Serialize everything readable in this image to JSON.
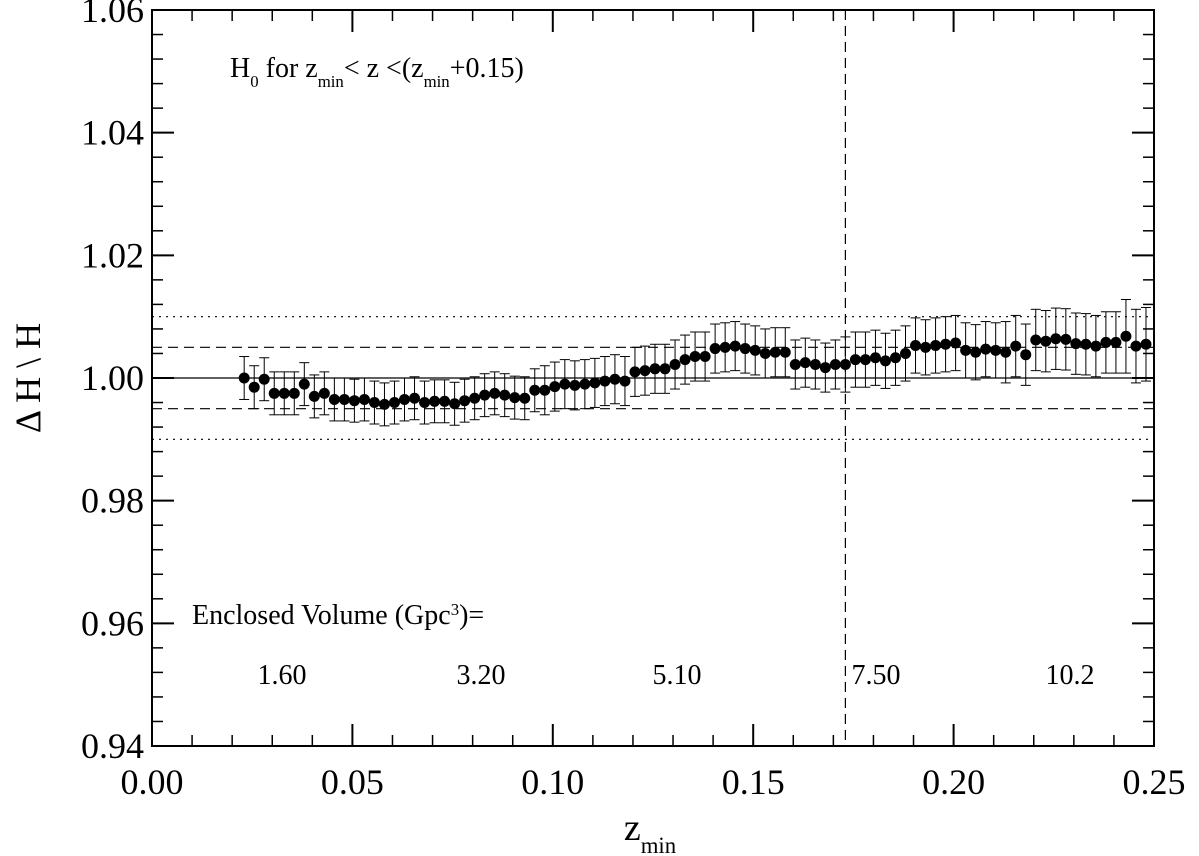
{
  "chart_data": {
    "type": "scatter",
    "x_label": [
      "z",
      "min"
    ],
    "y_label": "Δ H \\ H",
    "annotation": [
      "H",
      "0",
      " for z",
      "min",
      "< z <(z",
      "min",
      "+0.15)"
    ],
    "volume_title": [
      "Enclosed Volume (Gpc",
      "3",
      ")="
    ],
    "volume_labels": [
      "1.60",
      "3.20",
      "5.10",
      "7.50",
      "10.2"
    ],
    "xlim": [
      0,
      0.25
    ],
    "ylim": [
      0.94,
      1.06
    ],
    "xticks": [
      {
        "value": 0,
        "label": "0.00"
      },
      0.05,
      {
        "value": 0.1,
        "label": "0.10"
      },
      0.15,
      {
        "value": 0.2,
        "label": "0.20"
      },
      0.25
    ],
    "yticks": [
      0.94,
      0.96,
      0.98,
      {
        "value": 1,
        "label": "1.00"
      },
      1.02,
      1.04,
      1.06
    ],
    "xminor": 5,
    "yminor": 5,
    "hlines": [
      {
        "y": 1,
        "style": "solid"
      },
      {
        "y": 0.995,
        "style": "dashed"
      },
      {
        "y": 1.005,
        "style": "dashed"
      },
      {
        "y": 0.99,
        "style": "dotted"
      },
      {
        "y": 1.01,
        "style": "dotted"
      }
    ],
    "vline": {
      "x": 0.173,
      "style": "dashed"
    },
    "x": [
      0.023,
      0.0255,
      0.028,
      0.0305,
      0.033,
      0.0355,
      0.038,
      0.0405,
      0.043,
      0.0455,
      0.048,
      0.0505,
      0.053,
      0.0555,
      0.058,
      0.0605,
      0.063,
      0.0655,
      0.068,
      0.0705,
      0.073,
      0.0755,
      0.078,
      0.0805,
      0.083,
      0.0855,
      0.088,
      0.0905,
      0.093,
      0.0955,
      0.098,
      0.1005,
      0.103,
      0.1055,
      0.108,
      0.1105,
      0.113,
      0.1155,
      0.118,
      0.1205,
      0.123,
      0.1255,
      0.128,
      0.1305,
      0.133,
      0.1355,
      0.138,
      0.1405,
      0.143,
      0.1455,
      0.148,
      0.1505,
      0.153,
      0.1555,
      0.158,
      0.1605,
      0.163,
      0.1655,
      0.168,
      0.1705,
      0.173,
      0.1755,
      0.178,
      0.1805,
      0.183,
      0.1855,
      0.188,
      0.1905,
      0.193,
      0.1955,
      0.198,
      0.2005,
      0.203,
      0.2055,
      0.208,
      0.2105,
      0.213,
      0.2155,
      0.218,
      0.2205,
      0.223,
      0.2255,
      0.228,
      0.2305,
      0.233,
      0.2355,
      0.238,
      0.2405,
      0.243,
      0.2455,
      0.248
    ],
    "series": [
      {
        "name": "H0",
        "color": "#000000",
        "values": [
          1.0,
          0.9985,
          0.9998,
          0.9975,
          0.9975,
          0.9975,
          0.999,
          0.997,
          0.9975,
          0.9965,
          0.9965,
          0.9963,
          0.9965,
          0.996,
          0.9957,
          0.996,
          0.9965,
          0.9967,
          0.996,
          0.9962,
          0.9962,
          0.9958,
          0.9963,
          0.9967,
          0.9972,
          0.9975,
          0.9972,
          0.9968,
          0.9967,
          0.998,
          0.998,
          0.9986,
          0.999,
          0.9988,
          0.999,
          0.9992,
          0.9995,
          0.9998,
          0.9995,
          1.001,
          1.0012,
          1.0015,
          1.0015,
          1.0022,
          1.003,
          1.0035,
          1.0035,
          1.0048,
          1.005,
          1.0052,
          1.0048,
          1.0045,
          1.004,
          1.0042,
          1.0042,
          1.0022,
          1.0025,
          1.0022,
          1.0017,
          1.0022,
          1.0022,
          1.003,
          1.003,
          1.0033,
          1.0028,
          1.0033,
          1.004,
          1.0053,
          1.005,
          1.0053,
          1.0055,
          1.0057,
          1.0045,
          1.0042,
          1.0047,
          1.0045,
          1.0042,
          1.0052,
          1.0038,
          1.0062,
          1.006,
          1.0064,
          1.0063,
          1.0056,
          1.0055,
          1.0052,
          1.0058,
          1.0058,
          1.0068,
          1.0052,
          1.0055
        ],
        "errors": [
          0.0035,
          0.0035,
          0.0035,
          0.0035,
          0.0035,
          0.0035,
          0.0035,
          0.0035,
          0.0035,
          0.0035,
          0.0035,
          0.0035,
          0.0035,
          0.0035,
          0.0035,
          0.0035,
          0.0035,
          0.0035,
          0.0035,
          0.0035,
          0.0035,
          0.0035,
          0.0035,
          0.0035,
          0.0035,
          0.0035,
          0.0035,
          0.0035,
          0.0035,
          0.0035,
          0.004,
          0.004,
          0.004,
          0.004,
          0.004,
          0.004,
          0.004,
          0.004,
          0.004,
          0.004,
          0.004,
          0.004,
          0.004,
          0.004,
          0.004,
          0.004,
          0.004,
          0.004,
          0.004,
          0.004,
          0.004,
          0.004,
          0.004,
          0.004,
          0.004,
          0.004,
          0.004,
          0.004,
          0.004,
          0.004,
          0.0045,
          0.0045,
          0.0045,
          0.0045,
          0.0045,
          0.0045,
          0.0045,
          0.0045,
          0.0045,
          0.0045,
          0.0045,
          0.0045,
          0.0045,
          0.0045,
          0.0045,
          0.0045,
          0.005,
          0.005,
          0.005,
          0.005,
          0.005,
          0.005,
          0.005,
          0.005,
          0.005,
          0.005,
          0.005,
          0.005,
          0.006,
          0.006,
          0.006
        ]
      }
    ]
  }
}
